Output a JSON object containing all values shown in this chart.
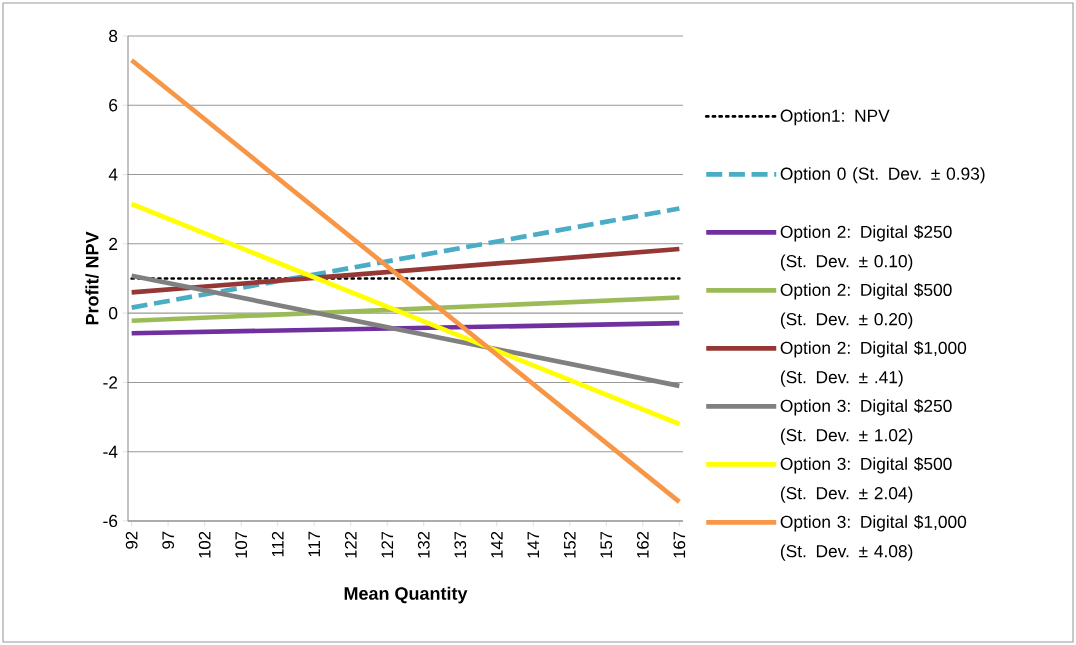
{
  "chart_data": {
    "type": "line",
    "xlabel": "Mean Quantity",
    "ylabel": "Profit/ NPV",
    "x": [
      92,
      167
    ],
    "xlim": [
      91.5,
      167.5
    ],
    "xticks": [
      92,
      97,
      102,
      107,
      112,
      117,
      122,
      127,
      132,
      137,
      142,
      147,
      152,
      157,
      162,
      167
    ],
    "ylim": [
      -6,
      8
    ],
    "yticks": [
      -6,
      -4,
      -2,
      0,
      2,
      4,
      6,
      8
    ],
    "grid": "y",
    "legend": "right",
    "marker": "none",
    "series": [
      {
        "name": "Option1: NPV",
        "color": "#000000",
        "line_style": "dotted",
        "values": [
          1.0,
          1.0
        ]
      },
      {
        "name": "Option 0 (St. Dev. ± 0.93)",
        "color": "#4bacc6",
        "line_style": "dashed",
        "values": [
          0.16,
          3.02
        ]
      },
      {
        "name": "Option 2: Digital $250\n(St. Dev. ± 0.10)",
        "color": "#7030a0",
        "line_style": "solid",
        "values": [
          -0.58,
          -0.29
        ]
      },
      {
        "name": "Option 2: Digital $500\n(St. Dev. ± 0.20)",
        "color": "#9bbb59",
        "line_style": "solid",
        "values": [
          -0.22,
          0.45
        ]
      },
      {
        "name": "Option 2: Digital $1,000\n(St. Dev. ± .41)",
        "color": "#953735",
        "line_style": "solid",
        "values": [
          0.6,
          1.85
        ]
      },
      {
        "name": "Option 3: Digital $250\n(St. Dev. ± 1.02)",
        "color": "#808080",
        "line_style": "solid",
        "values": [
          1.08,
          -2.1
        ]
      },
      {
        "name": "Option 3: Digital $500\n(St. Dev. ± 2.04)",
        "color": "#ffff00",
        "line_style": "solid",
        "values": [
          3.15,
          -3.2
        ]
      },
      {
        "name": "Option 3: Digital $1,000\n(St. Dev. ± 4.08)",
        "color": "#f79646",
        "line_style": "solid",
        "values": [
          7.3,
          -5.45
        ]
      }
    ]
  }
}
